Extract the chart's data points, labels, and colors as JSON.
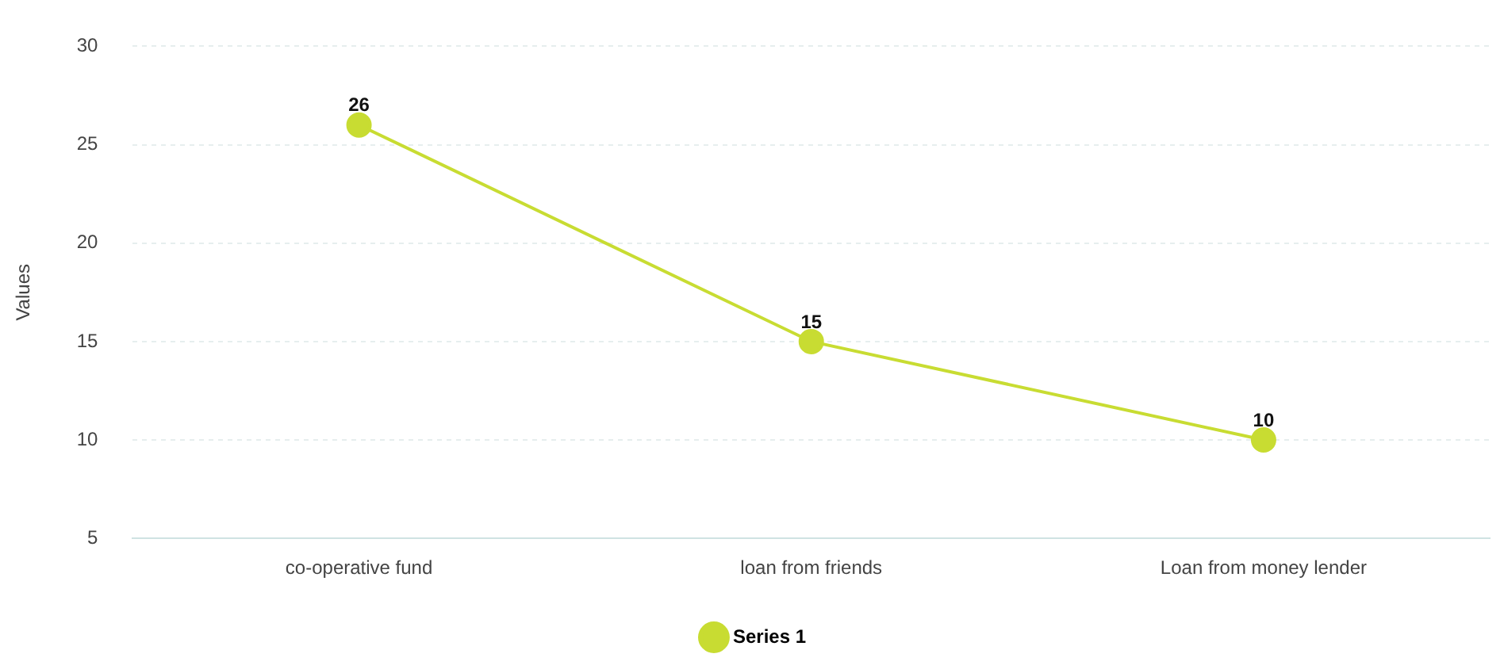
{
  "chart_data": {
    "type": "line",
    "ylabel": "Values",
    "categories": [
      "co-operative fund",
      "loan from friends",
      "Loan from money lender"
    ],
    "series": [
      {
        "name": "Series 1",
        "color": "#c8dc32",
        "values": [
          26,
          15,
          10
        ]
      }
    ],
    "ylim": [
      5,
      30
    ],
    "yticks": [
      5,
      10,
      15,
      20,
      25,
      30
    ],
    "grid": "y",
    "legend": "bottom",
    "marker": "circle",
    "line_style": "solid",
    "data_labels": true
  }
}
